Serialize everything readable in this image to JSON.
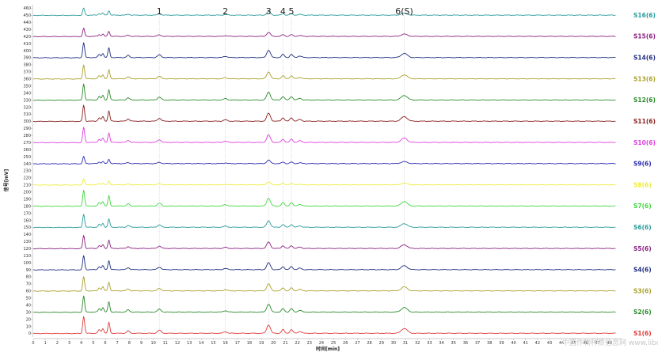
{
  "chart_data": {
    "type": "line",
    "title": "",
    "xlabel": "时间[min]",
    "ylabel": "信号[mV]",
    "xlim": [
      0,
      49
    ],
    "ylim": [
      -5,
      465
    ],
    "x_ticks": [
      0,
      1,
      2,
      3,
      4,
      5,
      6,
      7,
      8,
      9,
      10,
      11,
      12,
      13,
      14,
      15,
      16,
      17,
      18,
      19,
      20,
      21,
      22,
      23,
      24,
      25,
      26,
      27,
      28,
      29,
      30,
      31,
      32,
      33,
      34,
      35,
      36,
      37,
      38,
      39,
      40,
      41,
      42,
      43,
      44,
      45,
      46,
      47,
      48
    ],
    "y_ticks": [
      0,
      10,
      20,
      30,
      40,
      50,
      60,
      70,
      80,
      90,
      100,
      110,
      120,
      130,
      140,
      150,
      160,
      170,
      180,
      190,
      200,
      210,
      220,
      230,
      240,
      250,
      260,
      270,
      280,
      290,
      300,
      310,
      320,
      330,
      340,
      350,
      360,
      370,
      380,
      390,
      400,
      410,
      420,
      430,
      440,
      450,
      460
    ],
    "grid": false,
    "peaks": [
      {
        "label": "1",
        "time": 10.5
      },
      {
        "label": "2",
        "time": 16.0
      },
      {
        "label": "3",
        "time": 19.6
      },
      {
        "label": "4",
        "time": 20.8
      },
      {
        "label": "5",
        "time": 21.5
      },
      {
        "label": "6(S)",
        "time": 30.9
      }
    ],
    "peak_profile": [
      {
        "time": 4.2,
        "height": 14,
        "width": 0.08
      },
      {
        "time": 5.5,
        "height": 3,
        "width": 0.1
      },
      {
        "time": 5.8,
        "height": 4,
        "width": 0.08
      },
      {
        "time": 6.3,
        "height": 9,
        "width": 0.08
      },
      {
        "time": 7.9,
        "height": 2,
        "width": 0.12
      },
      {
        "time": 10.5,
        "height": 2.5,
        "width": 0.15
      },
      {
        "time": 16.0,
        "height": 1.2,
        "width": 0.15
      },
      {
        "time": 19.6,
        "height": 7,
        "width": 0.15
      },
      {
        "time": 20.8,
        "height": 3,
        "width": 0.12
      },
      {
        "time": 21.5,
        "height": 3,
        "width": 0.12
      },
      {
        "time": 22.2,
        "height": 1.5,
        "width": 0.15
      },
      {
        "time": 30.9,
        "height": 4,
        "width": 0.25
      }
    ],
    "series": [
      {
        "name": "S1(6)",
        "offset": 0,
        "scale": 1.7,
        "color": "#e03a3a"
      },
      {
        "name": "S2(6)",
        "offset": 30,
        "scale": 1.6,
        "color": "#2a8a2a"
      },
      {
        "name": "S3(6)",
        "offset": 60,
        "scale": 1.4,
        "color": "#a8a02a"
      },
      {
        "name": "S4(6)",
        "offset": 90,
        "scale": 1.4,
        "color": "#1e2d80"
      },
      {
        "name": "S5(6)",
        "offset": 120,
        "scale": 1.3,
        "color": "#8a1f80"
      },
      {
        "name": "S6(6)",
        "offset": 150,
        "scale": 1.3,
        "color": "#2a9a9a"
      },
      {
        "name": "S7(6)",
        "offset": 180,
        "scale": 1.6,
        "color": "#3ed83e"
      },
      {
        "name": "S8(6)",
        "offset": 210,
        "scale": 0.6,
        "color": "#ecec3a"
      },
      {
        "name": "S9(6)",
        "offset": 240,
        "scale": 0.7,
        "color": "#2a2ab0"
      },
      {
        "name": "S10(6)",
        "offset": 270,
        "scale": 1.5,
        "color": "#de3ede"
      },
      {
        "name": "S11(6)",
        "offset": 300,
        "scale": 1.6,
        "color": "#8a1e1e"
      },
      {
        "name": "S12(6)",
        "offset": 330,
        "scale": 1.6,
        "color": "#2a8a2a"
      },
      {
        "name": "S13(6)",
        "offset": 360,
        "scale": 1.4,
        "color": "#a8a02a"
      },
      {
        "name": "S14(6)",
        "offset": 390,
        "scale": 1.5,
        "color": "#1e2d80"
      },
      {
        "name": "S15(6)",
        "offset": 420,
        "scale": 0.8,
        "color": "#8a1f80"
      },
      {
        "name": "S16(6)",
        "offset": 450,
        "scale": 0.7,
        "color": "#2a9a9a"
      }
    ]
  },
  "watermark": "中国作物种质信息网 www.libercrops.com"
}
